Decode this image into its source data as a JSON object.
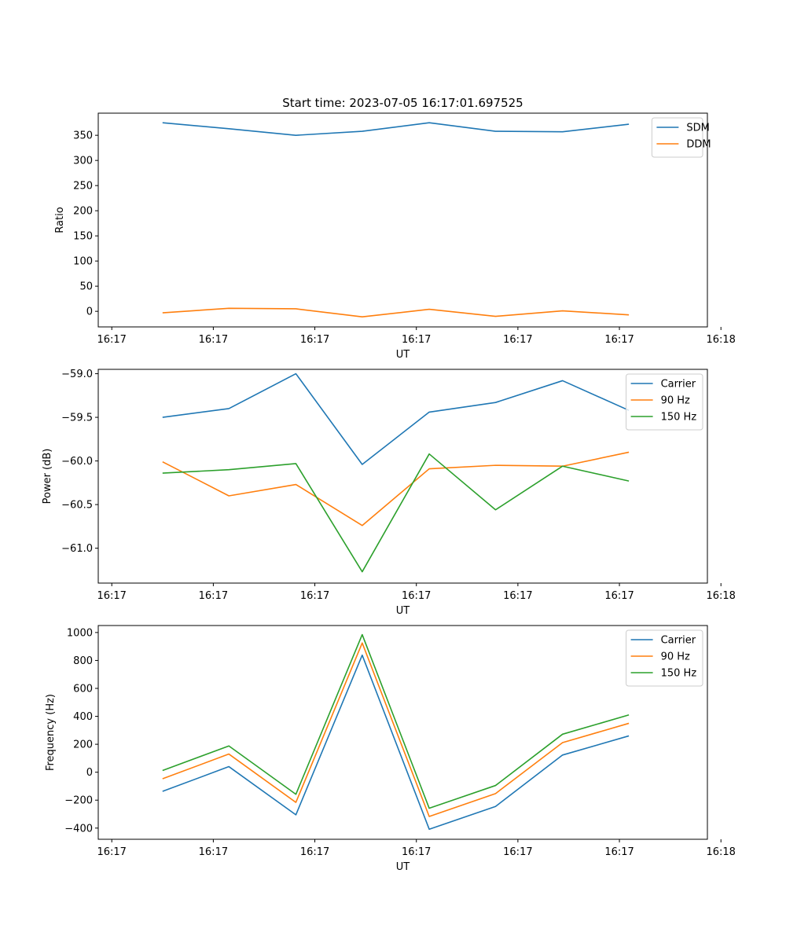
{
  "title": "Start time: 2023-07-05 16:17:01.697525",
  "chart_data": [
    {
      "type": "line",
      "ylabel": "Ratio",
      "xlabel": "UT",
      "ylim": [
        -31,
        394
      ],
      "yticks": [
        0,
        50,
        100,
        150,
        200,
        250,
        300,
        350
      ],
      "xlim": [
        -0.2,
        8.8
      ],
      "xticks": [
        0,
        1.5,
        3,
        4.5,
        6,
        7.5,
        9
      ],
      "xticklabels": [
        "16:17",
        "16:17",
        "16:17",
        "16:17",
        "16:17",
        "16:17",
        "16:18"
      ],
      "legend": "top-right",
      "x": [
        0.75,
        1.73,
        2.72,
        3.7,
        4.69,
        5.67,
        6.66,
        7.64
      ],
      "series": [
        {
          "name": "SDM",
          "color": "#1f77b4",
          "values": [
            375,
            363,
            350,
            358,
            375,
            358,
            357,
            372
          ]
        },
        {
          "name": "DDM",
          "color": "#ff7f0e",
          "values": [
            -3,
            6,
            5,
            -11,
            4,
            -10,
            1,
            -7
          ]
        }
      ]
    },
    {
      "type": "line",
      "ylabel": "Power (dB)",
      "xlabel": "UT",
      "ylim": [
        -61.4,
        -58.95
      ],
      "yticks": [
        -61.0,
        -60.5,
        -60.0,
        -59.5,
        -59.0
      ],
      "xlim": [
        -0.2,
        8.8
      ],
      "xticks": [
        0,
        1.5,
        3,
        4.5,
        6,
        7.5,
        9
      ],
      "xticklabels": [
        "16:17",
        "16:17",
        "16:17",
        "16:17",
        "16:17",
        "16:17",
        "16:18"
      ],
      "legend": "top-right",
      "x": [
        0.75,
        1.73,
        2.72,
        3.7,
        4.69,
        5.67,
        6.66,
        7.64
      ],
      "series": [
        {
          "name": "Carrier",
          "color": "#1f77b4",
          "values": [
            -59.5,
            -59.4,
            -59.0,
            -60.04,
            -59.44,
            -59.33,
            -59.08,
            -59.42
          ]
        },
        {
          "name": "90 Hz",
          "color": "#ff7f0e",
          "values": [
            -60.01,
            -60.4,
            -60.27,
            -60.74,
            -60.09,
            -60.05,
            -60.06,
            -59.9
          ]
        },
        {
          "name": "150 Hz",
          "color": "#2ca02c",
          "values": [
            -60.14,
            -60.1,
            -60.03,
            -61.27,
            -59.92,
            -60.56,
            -60.06,
            -60.23
          ]
        }
      ]
    },
    {
      "type": "line",
      "ylabel": "Frequency (Hz)",
      "xlabel": "UT",
      "ylim": [
        -480,
        1050
      ],
      "yticks": [
        -400,
        -200,
        0,
        200,
        400,
        600,
        800,
        1000
      ],
      "xlim": [
        -0.2,
        8.8
      ],
      "xticks": [
        0,
        1.5,
        3,
        4.5,
        6,
        7.5,
        9
      ],
      "xticklabels": [
        "16:17",
        "16:17",
        "16:17",
        "16:17",
        "16:17",
        "16:17",
        "16:18"
      ],
      "legend": "top-right",
      "x": [
        0.75,
        1.73,
        2.72,
        3.7,
        4.69,
        5.67,
        6.66,
        7.64
      ],
      "series": [
        {
          "name": "Carrier",
          "color": "#1f77b4",
          "values": [
            -137,
            40,
            -305,
            838,
            -408,
            -245,
            123,
            260
          ]
        },
        {
          "name": "90 Hz",
          "color": "#ff7f0e",
          "values": [
            -47,
            130,
            -216,
            925,
            -317,
            -153,
            212,
            350
          ]
        },
        {
          "name": "150 Hz",
          "color": "#2ca02c",
          "values": [
            12,
            188,
            -158,
            985,
            -258,
            -95,
            272,
            410
          ]
        }
      ]
    }
  ]
}
